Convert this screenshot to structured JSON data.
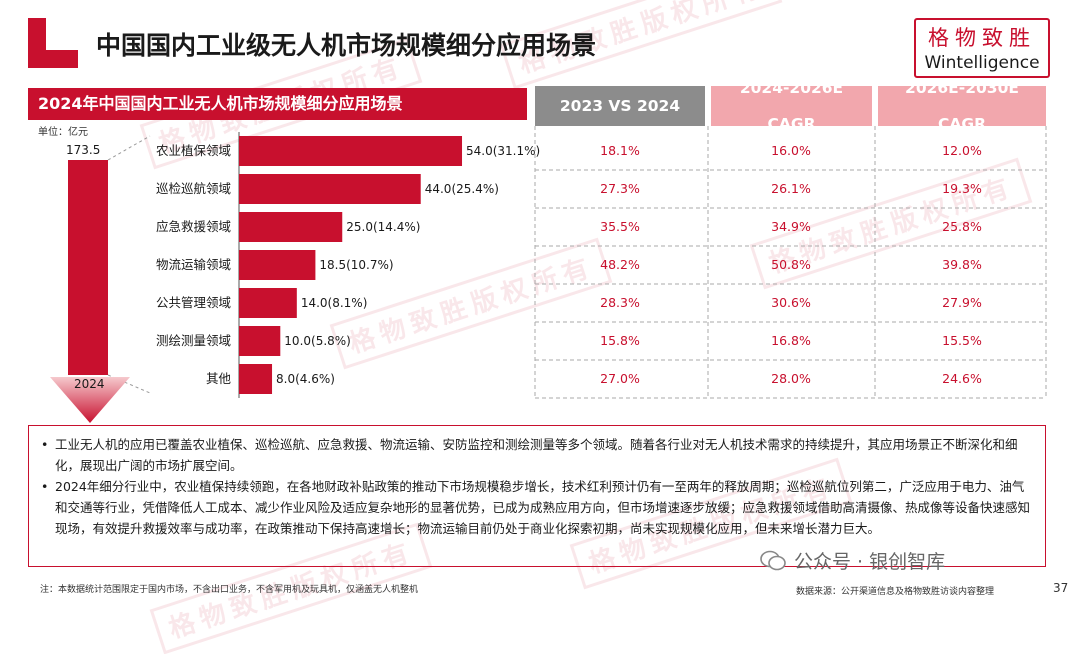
{
  "header": {
    "title": "中国国内工业级无人机市场规模细分应用场景",
    "brand_cn": "格物致胜",
    "brand_en": "Wintelligence"
  },
  "section_title": "2024年中国国内工业无人机市场规模细分应用场景",
  "table_headers": [
    "2023 VS 2024",
    "2024-2026E\nCAGR",
    "2026E-2030E\nCAGR"
  ],
  "unit_label": "单位：亿元",
  "total": {
    "value": "173.5",
    "year": "2024"
  },
  "chart_data": {
    "type": "bar",
    "orientation": "horizontal",
    "categories": [
      "农业植保领域",
      "巡检巡航领域",
      "应急救援领域",
      "物流运输领域",
      "公共管理领域",
      "测绘测量领域",
      "其他"
    ],
    "values": [
      54.0,
      44.0,
      25.0,
      18.5,
      14.0,
      10.0,
      8.0
    ],
    "data_labels": [
      "54.0(31.1%)",
      "44.0(25.4%)",
      "25.0(14.4%)",
      "18.5(10.7%)",
      "14.0(8.1%)",
      "10.0(5.8%)",
      "8.0(4.6%)"
    ],
    "total": 173.5,
    "bar_color": "#c8102e"
  },
  "table_rows": [
    [
      "18.1%",
      "16.0%",
      "12.0%"
    ],
    [
      "27.3%",
      "26.1%",
      "19.3%"
    ],
    [
      "35.5%",
      "34.9%",
      "25.8%"
    ],
    [
      "48.2%",
      "50.8%",
      "39.8%"
    ],
    [
      "28.3%",
      "30.6%",
      "27.9%"
    ],
    [
      "15.8%",
      "16.8%",
      "15.5%"
    ],
    [
      "27.0%",
      "28.0%",
      "24.6%"
    ]
  ],
  "bullets": [
    "工业无人机的应用已覆盖农业植保、巡检巡航、应急救援、物流运输、安防监控和测绘测量等多个领域。随着各行业对无人机技术需求的持续提升，其应用场景正不断深化和细化，展现出广阔的市场扩展空间。",
    "2024年细分行业中，农业植保持续领跑，在各地财政补贴政策的推动下市场规模稳步增长，技术红利预计仍有一至两年的释放周期；巡检巡航位列第二，广泛应用于电力、油气和交通等行业，凭借降低人工成本、减少作业风险及适应复杂地形的显著优势，已成为成熟应用方向，但市场增速逐步放缓；应急救援领域借助高清摄像、热成像等设备快速感知现场，有效提升救援效率与成功率，在政策推动下保持高速增长；物流运输目前仍处于商业化探索初期，尚未实现规模化应用，但未来增长潜力巨大。"
  ],
  "watermark": "格物致胜版权所有",
  "wechat": "公众号 · 银创智库",
  "footnote": "注：本数据统计范围限定于国内市场，不含出口业务，不含军用机及玩具机，仅涵盖无人机整机",
  "source": "数据来源：公开渠道信息及格物致胜访谈内容整理",
  "page_number": "37",
  "colors": {
    "accent": "#c8102e",
    "header_gray": "#8c8c8c",
    "header_pink": "#f2a7ad"
  }
}
